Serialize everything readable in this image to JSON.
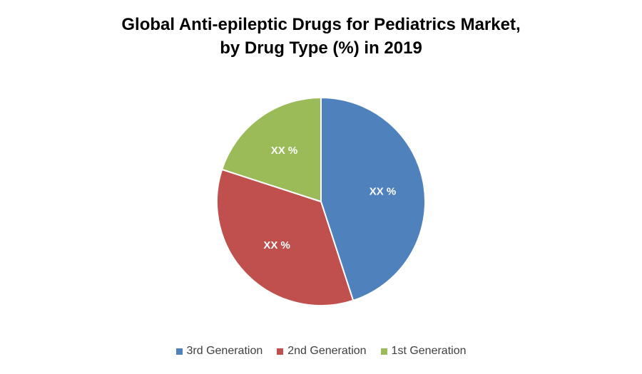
{
  "chart_data": {
    "type": "pie",
    "title_lines": [
      "Global Anti-epileptic Drugs for Pediatrics Market,",
      "by Drug Type (%) in 2019"
    ],
    "series": [
      {
        "name": "3rd Generation",
        "value": 45,
        "label": "XX %",
        "color": "#4F81BD"
      },
      {
        "name": "2nd Generation",
        "value": 35,
        "label": "XX %",
        "color": "#C0504D"
      },
      {
        "name": "1st Generation",
        "value": 20,
        "label": "XX %",
        "color": "#9BBB59"
      }
    ],
    "legend_position": "bottom"
  }
}
